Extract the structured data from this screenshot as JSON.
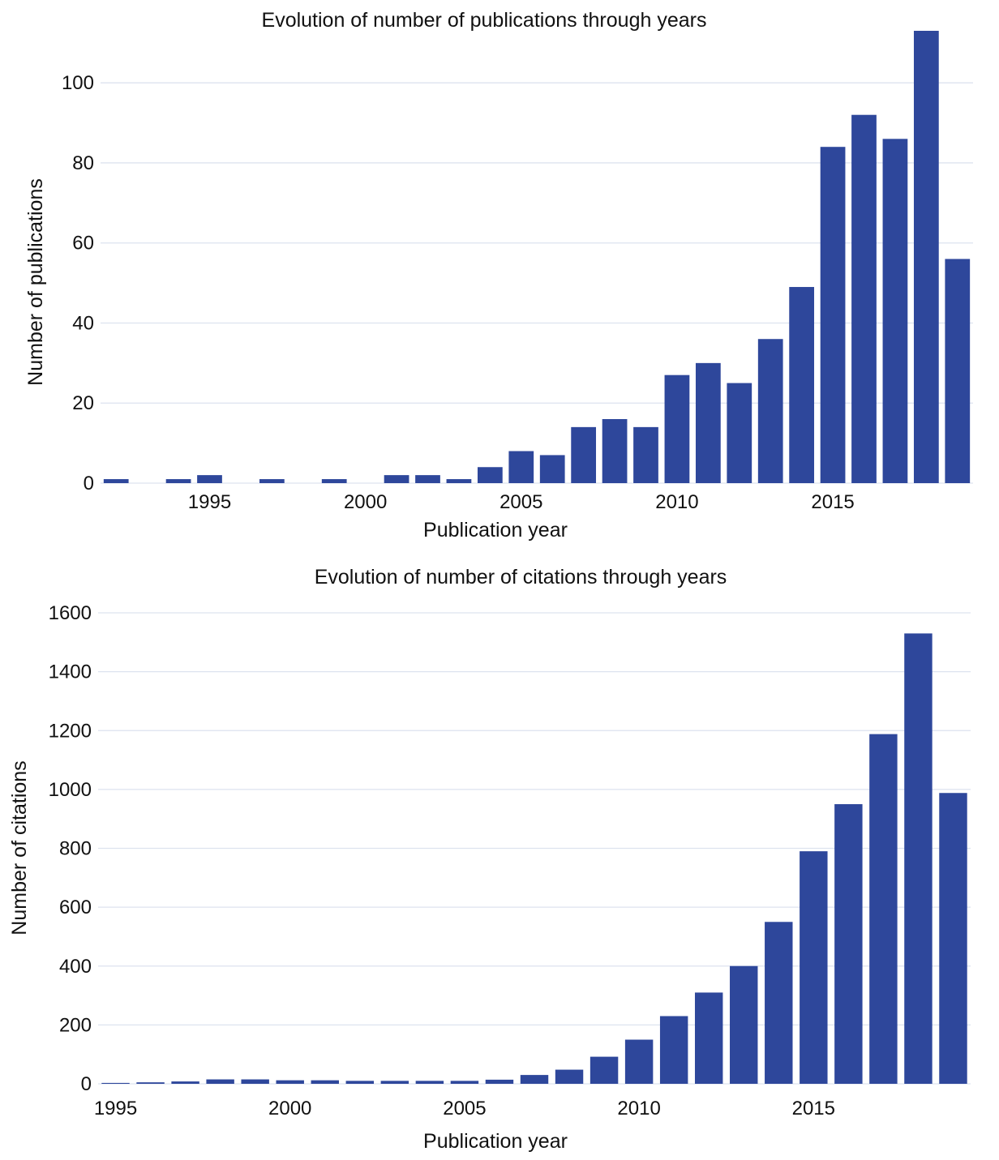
{
  "colors": {
    "bar": "#2e479b",
    "grid": "#dde3ef",
    "text": "#111111"
  },
  "chart_data": [
    {
      "type": "bar",
      "title": "Evolution of number of publications through years",
      "xlabel": "Publication year",
      "ylabel": "Number of publications",
      "x": [
        1992,
        1993,
        1994,
        1995,
        1996,
        1997,
        1998,
        1999,
        2000,
        2001,
        2002,
        2003,
        2004,
        2005,
        2006,
        2007,
        2008,
        2009,
        2010,
        2011,
        2012,
        2013,
        2014,
        2015,
        2016,
        2017,
        2018,
        2019
      ],
      "values": [
        1,
        0,
        1,
        2,
        0,
        1,
        0,
        1,
        0,
        2,
        2,
        1,
        4,
        8,
        7,
        14,
        16,
        14,
        27,
        30,
        25,
        36,
        49,
        84,
        92,
        86,
        113,
        56
      ],
      "xlim": [
        1991.5,
        2019.5
      ],
      "ylim": [
        0,
        113
      ],
      "xticks": [
        1995,
        2000,
        2005,
        2010,
        2015
      ],
      "yticks": [
        0,
        20,
        40,
        60,
        80,
        100
      ],
      "grid": true,
      "legend": "none"
    },
    {
      "type": "bar",
      "title": "Evolution of number of citations through years",
      "xlabel": "Publication year",
      "ylabel": "Number of citations",
      "x": [
        1995,
        1996,
        1997,
        1998,
        1999,
        2000,
        2001,
        2002,
        2003,
        2004,
        2005,
        2006,
        2007,
        2008,
        2009,
        2010,
        2011,
        2012,
        2013,
        2014,
        2015,
        2016,
        2017,
        2018,
        2019
      ],
      "values": [
        3,
        5,
        8,
        15,
        15,
        12,
        12,
        10,
        10,
        10,
        10,
        14,
        30,
        48,
        92,
        150,
        230,
        310,
        400,
        550,
        790,
        950,
        1188,
        1530,
        988
      ],
      "xlim": [
        1994.5,
        2019.5
      ],
      "ylim": [
        0,
        1600
      ],
      "xticks": [
        1995,
        2000,
        2005,
        2010,
        2015
      ],
      "yticks": [
        0,
        200,
        400,
        600,
        800,
        1000,
        1200,
        1400,
        1600
      ],
      "grid": true,
      "legend": "none"
    }
  ]
}
